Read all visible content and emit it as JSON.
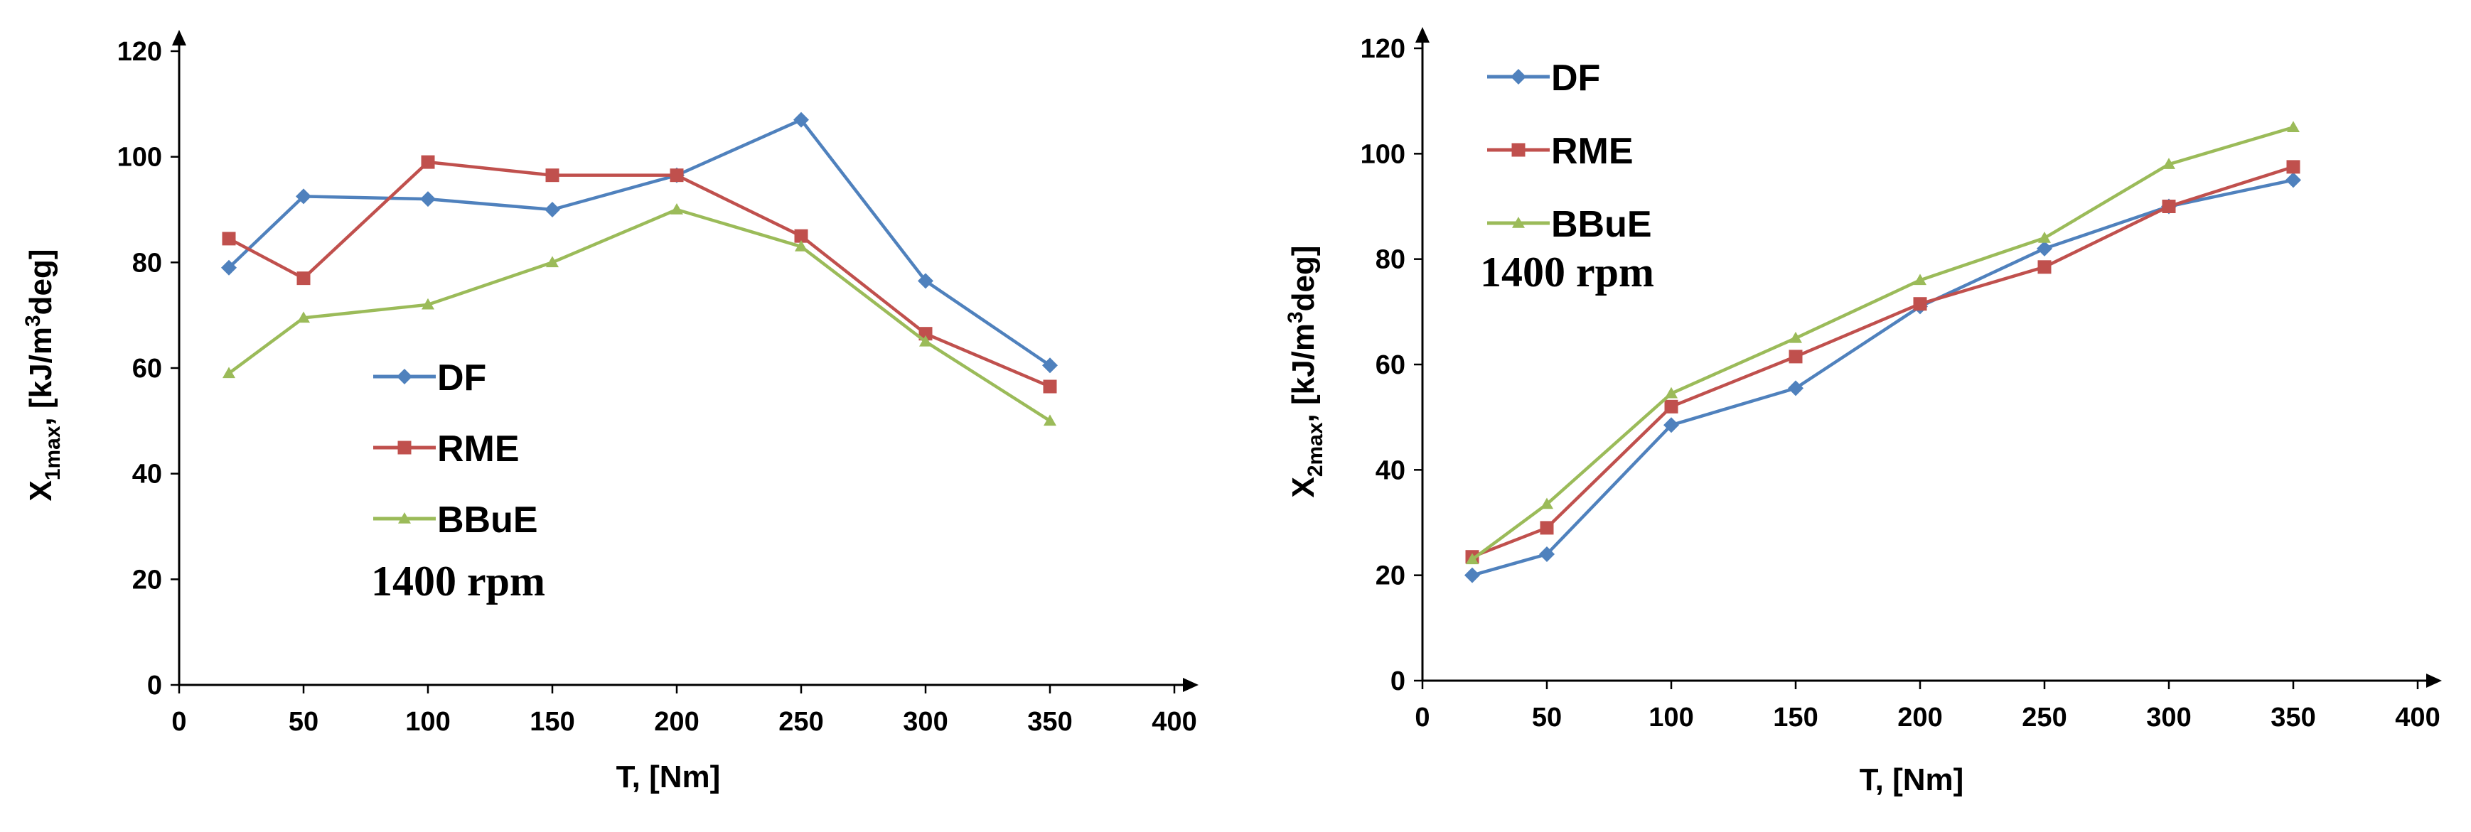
{
  "chart_data": [
    {
      "type": "line",
      "x": [
        20,
        50,
        100,
        150,
        200,
        250,
        300,
        350
      ],
      "xlabel": "T, [Nm]",
      "ylabel": "X1max, [kJ/m3deg]",
      "ylabel_parts": {
        "base": "X",
        "sub": "1max",
        "mid": ", [kJ/m",
        "sup": "3",
        "end": "deg]"
      },
      "xlim": [
        0,
        400
      ],
      "ylim": [
        0,
        120
      ],
      "xticks": [
        "0",
        "50",
        "100",
        "150",
        "200",
        "250",
        "300",
        "350",
        "400"
      ],
      "yticks": [
        "0",
        "20",
        "40",
        "60",
        "80",
        "100",
        "120"
      ],
      "annotation": "1400 rpm",
      "legend_placement": "center",
      "grid": false,
      "series": [
        {
          "name": "DF",
          "color": "#4F81BD",
          "marker": "diamond",
          "values": [
            79,
            92.5,
            92,
            90,
            96.5,
            107,
            76.5,
            60.5
          ]
        },
        {
          "name": "RME",
          "color": "#C0504D",
          "marker": "square",
          "values": [
            84.5,
            77,
            99,
            96.5,
            96.5,
            85,
            66.5,
            56.5
          ]
        },
        {
          "name": "BBuE",
          "color": "#9BBB59",
          "marker": "triangle",
          "values": [
            59,
            69.5,
            72,
            80,
            90,
            83,
            65,
            50
          ]
        }
      ]
    },
    {
      "type": "line",
      "x": [
        20,
        50,
        100,
        150,
        200,
        250,
        300,
        350
      ],
      "xlabel": "T, [Nm]",
      "ylabel": "X2max, [kJ/m3deg]",
      "ylabel_parts": {
        "base": "X",
        "sub": "2max",
        "mid": ", [kJ/m",
        "sup": "3",
        "end": "deg]"
      },
      "xlim": [
        0,
        400
      ],
      "ylim": [
        0,
        120
      ],
      "xticks": [
        "0",
        "50",
        "100",
        "150",
        "200",
        "250",
        "300",
        "350",
        "400"
      ],
      "yticks": [
        "0",
        "20",
        "40",
        "60",
        "80",
        "100",
        "120"
      ],
      "annotation": "1400 rpm",
      "legend_placement": "top-left",
      "grid": false,
      "series": [
        {
          "name": "DF",
          "color": "#4F81BD",
          "marker": "diamond",
          "values": [
            20,
            24,
            48.5,
            55.5,
            71,
            82,
            90,
            95
          ]
        },
        {
          "name": "RME",
          "color": "#C0504D",
          "marker": "square",
          "values": [
            23.5,
            29,
            52,
            61.5,
            71.5,
            78.5,
            90,
            97.5
          ]
        },
        {
          "name": "BBuE",
          "color": "#9BBB59",
          "marker": "triangle",
          "values": [
            23,
            33.5,
            54.5,
            65,
            76,
            84,
            98,
            105
          ]
        }
      ]
    }
  ]
}
